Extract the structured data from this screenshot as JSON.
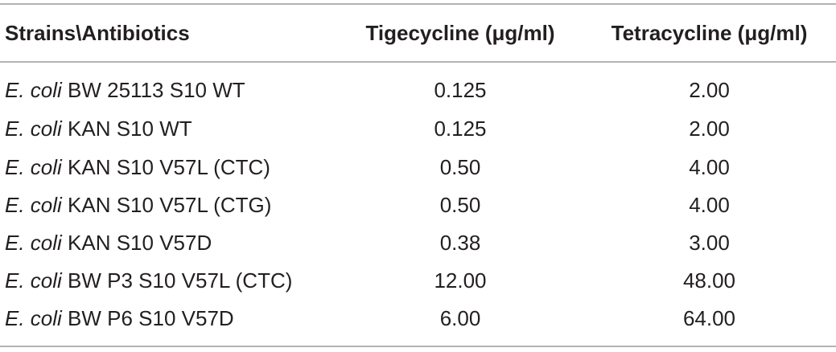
{
  "table": {
    "headers": {
      "strain": "Strains\\Antibiotics",
      "tigecycline": "Tigecycline (μg/ml)",
      "tetracycline": "Tetracycline (μg/ml)"
    },
    "rows": [
      {
        "species": "E. coli",
        "strain": " BW 25113 S10 WT",
        "tigecycline": "0.125",
        "tetracycline": "2.00"
      },
      {
        "species": "E. coli",
        "strain": " KAN S10 WT",
        "tigecycline": "0.125",
        "tetracycline": "2.00"
      },
      {
        "species": "E. coli",
        "strain": " KAN S10 V57L (CTC)",
        "tigecycline": "0.50",
        "tetracycline": "4.00"
      },
      {
        "species": "E. coli",
        "strain": " KAN S10 V57L (CTG)",
        "tigecycline": "0.50",
        "tetracycline": "4.00"
      },
      {
        "species": "E. coli",
        "strain": " KAN S10 V57D",
        "tigecycline": "0.38",
        "tetracycline": "3.00"
      },
      {
        "species": "E. coli",
        "strain": " BW P3 S10 V57L (CTC)",
        "tigecycline": "12.00",
        "tetracycline": "48.00"
      },
      {
        "species": "E. coli",
        "strain": " BW P6 S10 V57D",
        "tigecycline": "6.00",
        "tetracycline": "64.00"
      }
    ]
  }
}
